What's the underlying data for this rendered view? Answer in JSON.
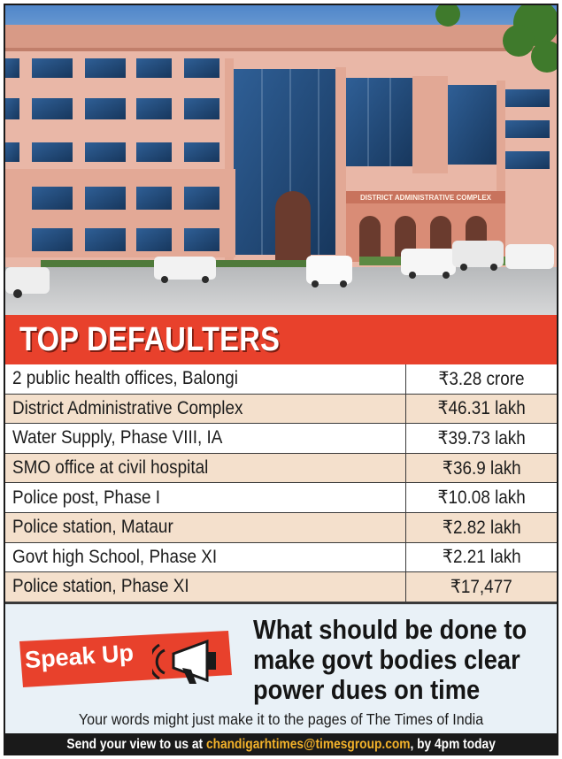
{
  "header": {
    "title": "TOP DEFAULTERS"
  },
  "building_sign": "DISTRICT ADMINISTRATIVE COMPLEX",
  "defaulters": [
    {
      "name": "2 public health offices, Balongi",
      "amount": "₹3.28 crore"
    },
    {
      "name": "District Administrative Complex",
      "amount": "₹46.31 lakh"
    },
    {
      "name": "Water Supply, Phase VIII, IA",
      "amount": "₹39.73 lakh"
    },
    {
      "name": "SMO office at civil hospital",
      "amount": "₹36.9 lakh"
    },
    {
      "name": "Police post, Phase I",
      "amount": "₹10.08 lakh"
    },
    {
      "name": "Police station, Mataur",
      "amount": "₹2.82 lakh"
    },
    {
      "name": "Govt high School, Phase XI",
      "amount": "₹2.21 lakh"
    },
    {
      "name": "Police station, Phase XI",
      "amount": "₹17,477"
    }
  ],
  "speak_up": {
    "badge": "Speak Up",
    "question_lines": [
      "What should be done to",
      "make govt bodies clear",
      "power dues on time"
    ],
    "subline": "Your words might just make it to the pages of The Times of India"
  },
  "footer": {
    "prefix": "Send your view to us at ",
    "email": "chandigarhtimes@timesgroup.com",
    "suffix": ", by 4pm today"
  },
  "colors": {
    "band": "#e8412c",
    "row_alt": "#f4e0cc",
    "panel": "#e9f1f7",
    "email": "#f3b22a"
  }
}
